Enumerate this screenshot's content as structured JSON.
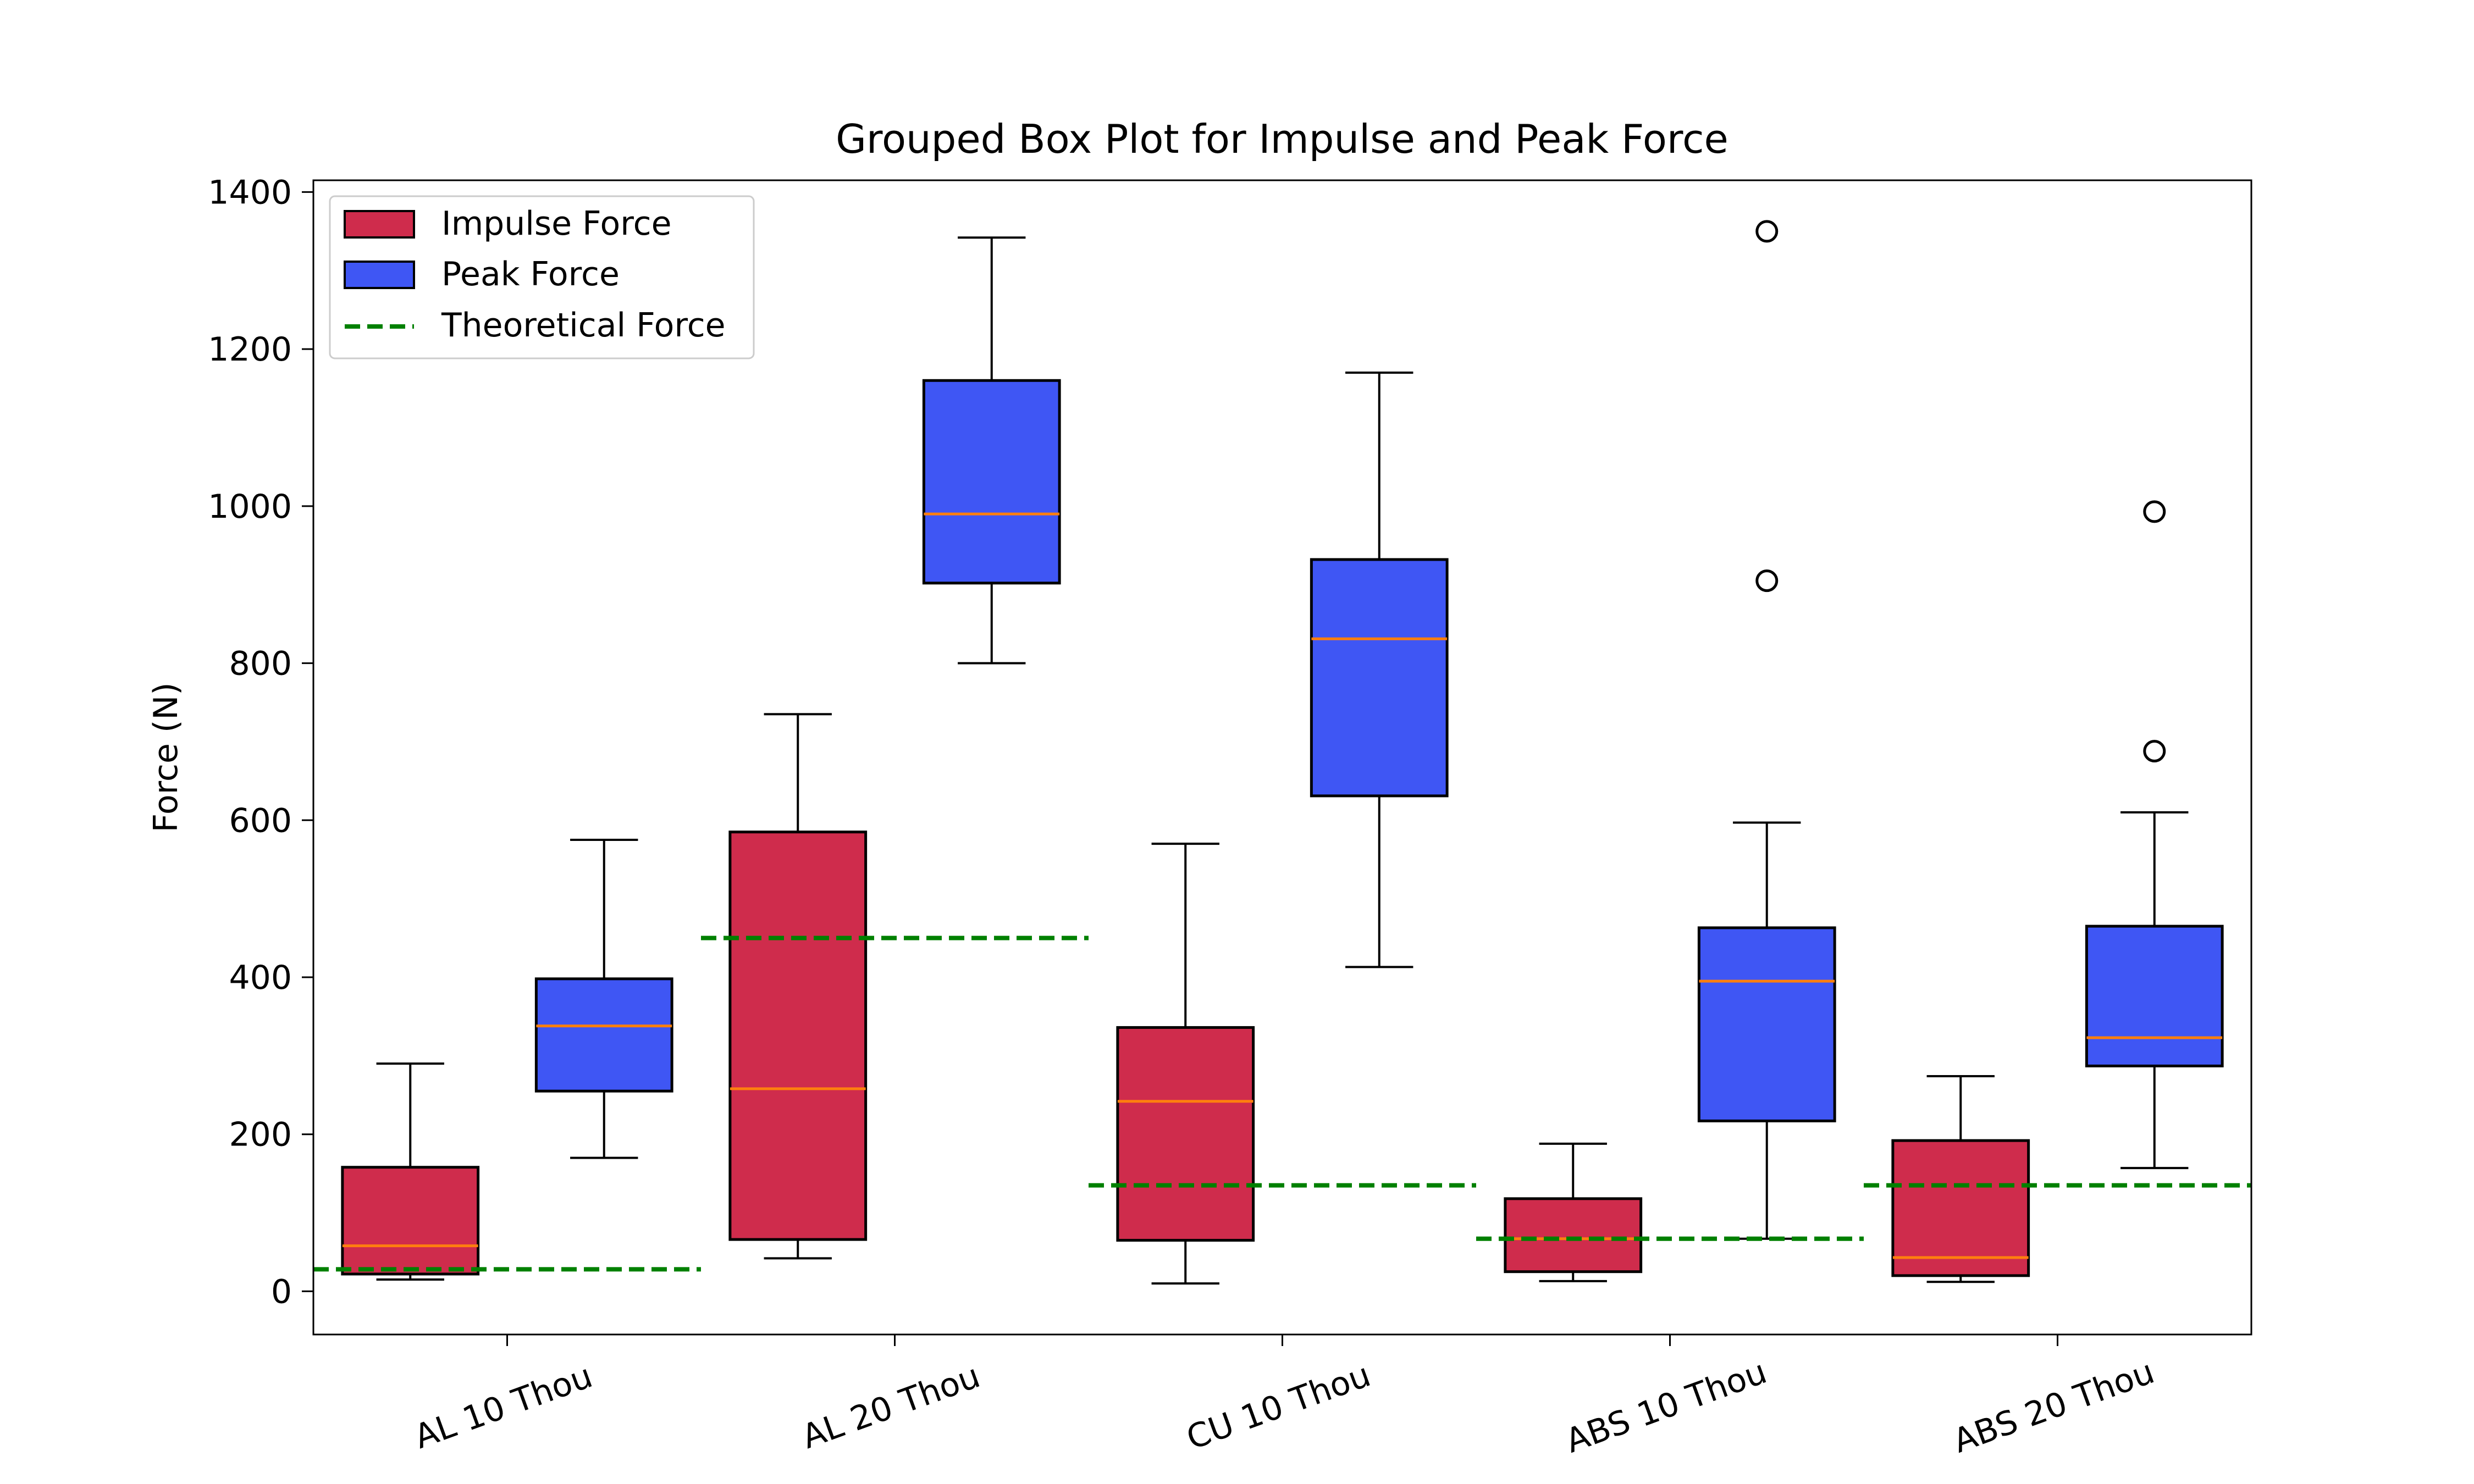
{
  "chart_data": {
    "type": "box",
    "title": "Grouped Box Plot for Impulse and Peak Force",
    "xlabel": "",
    "ylabel": "Force (N)",
    "ylim": [
      -55,
      1415
    ],
    "yticks": [
      0,
      200,
      400,
      600,
      800,
      1000,
      1200,
      1400
    ],
    "categories": [
      "AL 10 Thou",
      "AL 20 Thou",
      "CU 10 Thou",
      "ABS 10 Thou",
      "ABS 20 Thou"
    ],
    "legend_position": "upper-left",
    "grid": false,
    "series": [
      {
        "name": "Impulse Force",
        "color": "#cf2c4c",
        "boxes": [
          {
            "whislo": 15,
            "q1": 22,
            "med": 58,
            "q3": 158,
            "whishi": 290,
            "fliers": []
          },
          {
            "whislo": 42,
            "q1": 66,
            "med": 258,
            "q3": 585,
            "whishi": 735,
            "fliers": []
          },
          {
            "whislo": 10,
            "q1": 65,
            "med": 242,
            "q3": 336,
            "whishi": 570,
            "fliers": []
          },
          {
            "whislo": 13,
            "q1": 25,
            "med": 67,
            "q3": 118,
            "whishi": 188,
            "fliers": []
          },
          {
            "whislo": 12,
            "q1": 20,
            "med": 43,
            "q3": 192,
            "whishi": 274,
            "fliers": []
          }
        ]
      },
      {
        "name": "Peak Force",
        "color": "#3f56f4",
        "boxes": [
          {
            "whislo": 170,
            "q1": 255,
            "med": 338,
            "q3": 398,
            "whishi": 575,
            "fliers": []
          },
          {
            "whislo": 800,
            "q1": 902,
            "med": 990,
            "q3": 1160,
            "whishi": 1342,
            "fliers": []
          },
          {
            "whislo": 413,
            "q1": 631,
            "med": 831,
            "q3": 932,
            "whishi": 1170,
            "fliers": []
          },
          {
            "whislo": 67,
            "q1": 217,
            "med": 395,
            "q3": 463,
            "whishi": 597,
            "fliers": [
              905,
              1350
            ]
          },
          {
            "whislo": 157,
            "q1": 287,
            "med": 323,
            "q3": 465,
            "whishi": 610,
            "fliers": [
              688,
              993
            ]
          }
        ]
      }
    ],
    "theoretical": {
      "name": "Theoretical Force",
      "color": "#008000",
      "style": "dashed",
      "values": [
        28,
        450,
        135,
        67,
        135
      ]
    },
    "median_color": "#ff7f0e"
  }
}
